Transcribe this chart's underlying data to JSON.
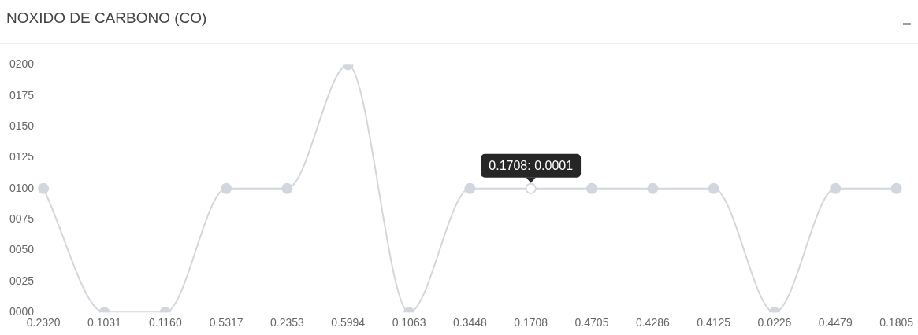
{
  "chart_data": {
    "type": "line",
    "title": "NOXIDO DE CARBONO (CO)",
    "categories": [
      "0.2320",
      "0.1031",
      "0.1160",
      "0.5317",
      "0.2353",
      "0.5994",
      "0.1063",
      "0.3448",
      "0.1708",
      "0.4705",
      "0.4286",
      "0.4125",
      "0.0226",
      "0.4479",
      "0.1805"
    ],
    "series": [
      {
        "color": "#d2d6de",
        "values": [
          100,
          0,
          0,
          100,
          100,
          200,
          0,
          100,
          100,
          100,
          100,
          100,
          0,
          100,
          100
        ]
      }
    ],
    "ylim": [
      0,
      200
    ],
    "yticks": [
      {
        "value": 0,
        "label": "0000"
      },
      {
        "value": 25,
        "label": "0025"
      },
      {
        "value": 50,
        "label": "0050"
      },
      {
        "value": 75,
        "label": "0075"
      },
      {
        "value": 100,
        "label": "0100"
      },
      {
        "value": 125,
        "label": "0125"
      },
      {
        "value": 150,
        "label": "0150"
      },
      {
        "value": 175,
        "label": "0175"
      },
      {
        "value": 200,
        "label": "0200"
      }
    ],
    "grid": false,
    "legend": false,
    "marker": "circle",
    "line_style": "solid",
    "annotations": [
      {
        "text": "0.1708: 0.0001",
        "x": "0.1708",
        "y": 100
      }
    ]
  }
}
